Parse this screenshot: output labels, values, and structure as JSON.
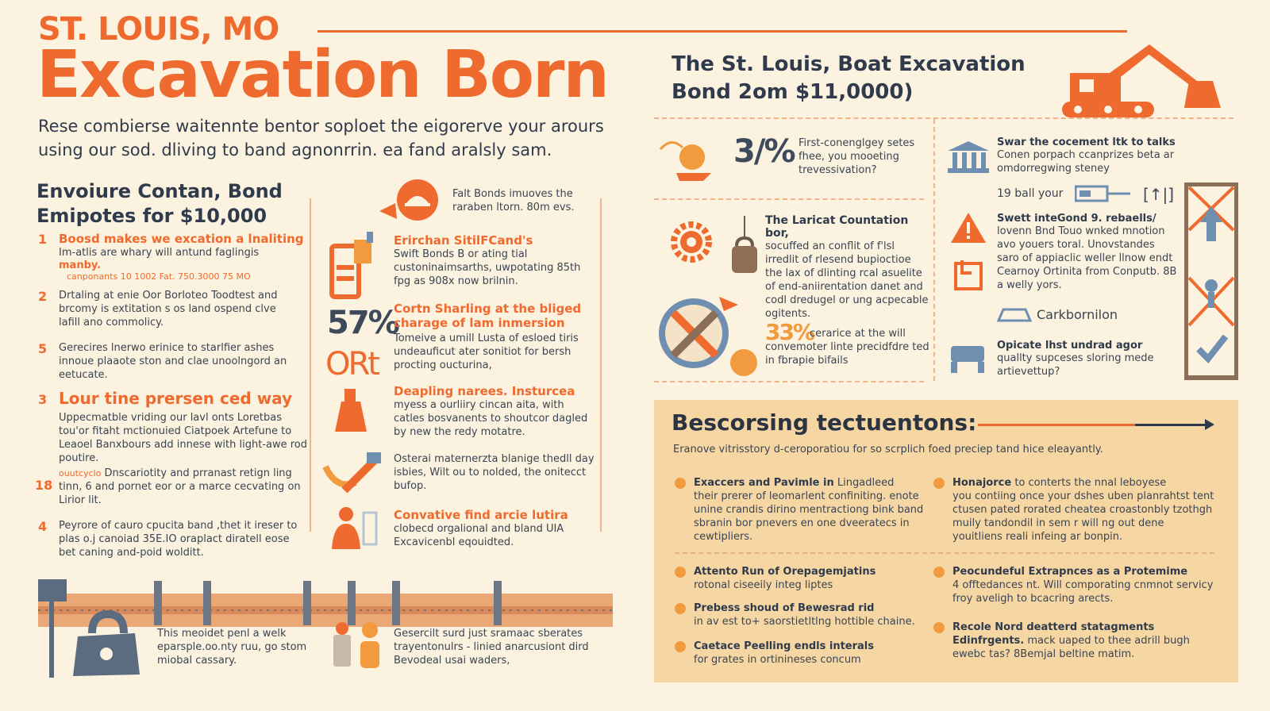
{
  "header": {
    "kicker": "ST. LOUIS, MO",
    "title": "Excavation Born",
    "lead_line1": "Rese combierse waitennte bentor soploet the eigorerve your arours",
    "lead_line2": "using our sod. dliving to band agnonrrin. ea fand aralsly sam."
  },
  "left": {
    "section_title_line1": "Envoiure Contan, Bond",
    "section_title_line2": "Emipotes for $10,000",
    "items": [
      {
        "num": "1",
        "title": "Boosd makes we excation a lnaliting",
        "body": "Im-atlis are whary will antund faglingis",
        "highlight": "manby.",
        "small": "canponants 10 1002 Fat. 750.3000 75 MO"
      },
      {
        "num": "2",
        "body": "Drtaling at enie Oor Borloteo Toodtest and brcomy is extitation s os land ospend clve lafill ano commolicy."
      },
      {
        "num": "5",
        "body": "Gerecires lnerwo erinice to starlfier ashes innoue plaaote ston and clae unoolngord an eetucate."
      },
      {
        "num": "3",
        "title": "Lour tine prersen ced way",
        "body": "Uppecmatble vriding our lavl onts Loretbas tou'or fitaht mctionuied Ciatpoek Artefune to Leaoel Banxbours add innese with light-awe rod poutire."
      },
      {
        "num": "18",
        "small": "ouutcyclo",
        "body": "Dnscariotity and prranast retign ling tinn, 6 and pornet eor or a marce cecvating on Lirior lit."
      },
      {
        "num": "4",
        "body": "Peyrore of cauro cpucita band ,thet it ireser to plas o.j canoiad 35E.IO oraplact diratell eose bet caning and-poid wolditt."
      }
    ],
    "bottom_text": "This meoidet penl a welk eparsple.oo.nty ruu, go stom miobal cassary."
  },
  "middle": {
    "items": [
      {
        "body": "Falt Bonds imuoves the raraben ltorn. 80m evs."
      },
      {
        "title": "Erirchan SitilFCand's",
        "body": "Swift Bonds B or ating tial custoninaimsarths, uwpotating 85th fpg as 908x now brilnin."
      },
      {
        "stat": "57%",
        "title": "Cortn Sharling at the bliged charage of lam inmersion",
        "body": "Tomeive a umill Lusta of esloed tiris undeauficut ater sonitiot for bersh procting oucturina,"
      },
      {
        "stat2": "ORt"
      },
      {
        "title": "Deapling narees. Insturcea",
        "body": "myess a ourliiry cincan aita, with catles bosvanents to shoutcor dagled by new the redy motatre."
      },
      {
        "body": "Osterai maternerzta blanige thedll day isbies, Wilt ou to nolded, the onitecct bufop."
      },
      {
        "title": "Convative find arcie lutira",
        "body": "clobecd orgalional and bland UIA Excavicenbl eqouidted."
      }
    ],
    "bottom_text": "Gesercilt surd just sramaac sberates trayentonulrs - linied anarcusiont dird Bevodeal usai waders,"
  },
  "right": {
    "title_line1": "The St. Louis, Boat Excavation",
    "title_line2": "Bond 2om $11,0000)",
    "stat1": "3/%",
    "stat1_text": "First-conenglgey setes fhee, you mooeting trevessivation?",
    "stat2": "33%",
    "stat2_text": "cerarice at the will convemoter linte precidfdre ted in fbrapie bifails",
    "lanicat_title": "The Laricat Countation bor,",
    "lanicat_body": "socuffed an conflit of f'lsl irredlit of rlesend bupioctioe the lax of dlinting rcal asuelite of end-aniirentation danet and codl dredugel or ung acpecable ogitents.",
    "col2": [
      {
        "title": "Swar the cocement ltk to talks",
        "body": "Conen porpach ccanprizes beta ar omdorregwing steney"
      },
      {
        "label": "19 ball your"
      },
      {
        "title": "Swett inteGond 9. rebaells/",
        "body": "lovenn Bnd Touo wnked mnotion avo youers toral. Unovstandes saro of appiaclic weller llnow endt Cearnoy Ortinita from Conputb. 8B a welly yors."
      },
      {
        "label": "Carkbornilon"
      },
      {
        "title": "Opicate lhst undrad agor",
        "body": "quallty supceses sloring mede artievettup?"
      }
    ],
    "panel": {
      "title": "Bescorsing tectuentons:",
      "intro": "Eranove vitrisstory d-ceroporatiou for so scrplich foed preciep tand hice eleayantly.",
      "items": [
        {
          "title": "Exaccers and Pavimle in",
          "body_inline": "Lingadleed",
          "body": "their prerer of leomarlent confiniting. enote unine crandis dirino mentractiong bink band sbranin bor pnevers en one dveeratecs in cewtipliers."
        },
        {
          "title": "Honajorce",
          "body_inline": "to conterts the nnal leboyese",
          "body": "you contiing once your dshes uben planrahtst tent ctusen pated rorated cheatea croastonbly tzothgh muily tandondil in sem r will ng out dene youitliens reali infeing ar bonpin."
        },
        {
          "title": "Attento Run of Orepagemjatins",
          "body": "rotonal ciseeily integ liptes"
        },
        {
          "title": "Peocundeful Extrapnces as a Protemime",
          "body": "4 offtedances nt. Will comporating cnmnot servicy froy aveligh to bcacring arects."
        },
        {
          "title": "Prebess shoud of Bewesrad rid",
          "body": "in av est to+ saorstietltlng hottible chaine."
        },
        {
          "title": "Recole Nord deatterd statagments Edinfrgents.",
          "body_inline": "mack uaped to thee adrill bugh",
          "body": "ewebc tas? 8Bemjal beltine matim."
        },
        {
          "title": "Caetace Peelling endls interals",
          "body": "for grates in ortinineses concum"
        }
      ]
    }
  },
  "colors": {
    "background": "#fbf2df",
    "accent": "#ef6a2e",
    "navy": "#2f3b4c",
    "panel": "#f6d7a4"
  },
  "icons": [
    "excavator-icon",
    "helmet-icon",
    "bank-icon",
    "warning-icon",
    "gear-icon",
    "no-entry-icon",
    "battery-icon",
    "truck-icon",
    "lock-icon",
    "person-icon",
    "wrench-icon",
    "checkmark-icon"
  ]
}
